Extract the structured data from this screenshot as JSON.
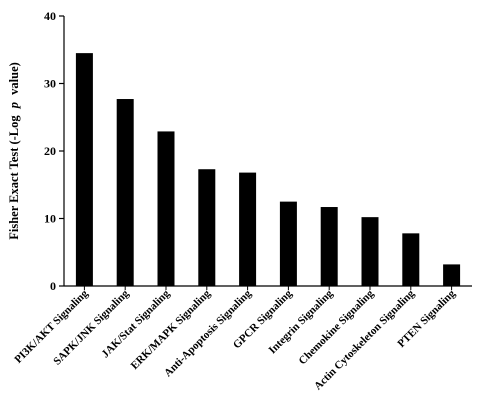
{
  "chart_data": {
    "type": "bar",
    "categories": [
      "PI3K/AKT Signaling",
      "SAPK/JNK Signaling",
      "JAK/Stat Signaling",
      "ERK/MAPK Signaling",
      "Anti-Apoptosis Signaling",
      "GPCR Signaling",
      "Integrin Signaling",
      "Chemokine Signaling",
      "Actin Cytoskeleton Signaling",
      "PTEN Signaling"
    ],
    "values": [
      34.5,
      27.7,
      22.9,
      17.3,
      16.8,
      12.5,
      11.7,
      10.2,
      7.8,
      3.2
    ],
    "title": "",
    "xlabel": "",
    "ylabel": {
      "prefix": "Fisher Exact Test (-Log",
      "italic": "p",
      "suffix": "value)"
    },
    "ylim": [
      0,
      40
    ],
    "yticks": [
      0,
      10,
      20,
      30,
      40
    ],
    "bar_color": "#000000",
    "grid": false,
    "legend": "none"
  }
}
